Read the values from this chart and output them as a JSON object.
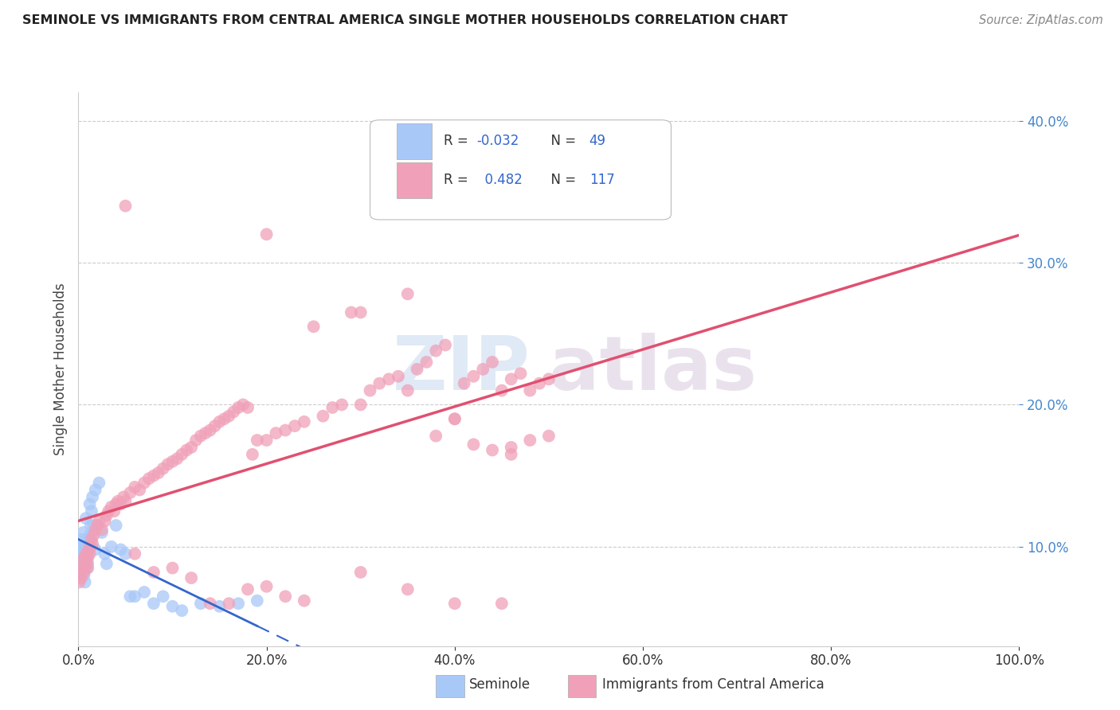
{
  "title": "SEMINOLE VS IMMIGRANTS FROM CENTRAL AMERICA SINGLE MOTHER HOUSEHOLDS CORRELATION CHART",
  "source": "Source: ZipAtlas.com",
  "ylabel": "Single Mother Households",
  "xlim": [
    0.0,
    1.0
  ],
  "ylim": [
    0.03,
    0.42
  ],
  "yticks": [
    0.1,
    0.2,
    0.3,
    0.4
  ],
  "xtick_vals": [
    0.0,
    0.2,
    0.4,
    0.6,
    0.8,
    1.0
  ],
  "legend_R1": "-0.032",
  "legend_N1": "49",
  "legend_R2": "0.482",
  "legend_N2": "117",
  "color_seminole": "#a8c8f8",
  "color_immigrants": "#f0a0b8",
  "color_line_seminole": "#3366cc",
  "color_line_immigrants": "#e05070",
  "background_color": "#ffffff",
  "watermark_zip": "ZIP",
  "watermark_atlas": "atlas",
  "seminole_x": [
    0.001,
    0.002,
    0.002,
    0.003,
    0.003,
    0.004,
    0.004,
    0.005,
    0.005,
    0.006,
    0.006,
    0.007,
    0.007,
    0.008,
    0.008,
    0.009,
    0.009,
    0.01,
    0.01,
    0.011,
    0.012,
    0.013,
    0.014,
    0.015,
    0.016,
    0.018,
    0.02,
    0.022,
    0.025,
    0.028,
    0.03,
    0.035,
    0.04,
    0.045,
    0.05,
    0.055,
    0.06,
    0.07,
    0.08,
    0.09,
    0.1,
    0.11,
    0.13,
    0.15,
    0.17,
    0.19,
    0.008,
    0.012,
    0.018
  ],
  "seminole_y": [
    0.095,
    0.1,
    0.09,
    0.105,
    0.085,
    0.098,
    0.092,
    0.11,
    0.088,
    0.095,
    0.08,
    0.1,
    0.075,
    0.09,
    0.095,
    0.085,
    0.1,
    0.095,
    0.088,
    0.105,
    0.13,
    0.115,
    0.125,
    0.135,
    0.115,
    0.14,
    0.115,
    0.145,
    0.11,
    0.095,
    0.088,
    0.1,
    0.115,
    0.098,
    0.095,
    0.065,
    0.065,
    0.068,
    0.06,
    0.065,
    0.058,
    0.055,
    0.06,
    0.058,
    0.06,
    0.062,
    0.12,
    0.108,
    0.098
  ],
  "immigrants_x": [
    0.001,
    0.002,
    0.003,
    0.004,
    0.005,
    0.006,
    0.006,
    0.007,
    0.008,
    0.009,
    0.01,
    0.01,
    0.011,
    0.012,
    0.013,
    0.014,
    0.015,
    0.016,
    0.018,
    0.02,
    0.022,
    0.025,
    0.028,
    0.03,
    0.032,
    0.035,
    0.038,
    0.04,
    0.042,
    0.045,
    0.048,
    0.05,
    0.055,
    0.06,
    0.065,
    0.07,
    0.075,
    0.08,
    0.085,
    0.09,
    0.095,
    0.1,
    0.105,
    0.11,
    0.115,
    0.12,
    0.125,
    0.13,
    0.135,
    0.14,
    0.145,
    0.15,
    0.155,
    0.16,
    0.165,
    0.17,
    0.175,
    0.18,
    0.185,
    0.19,
    0.2,
    0.21,
    0.22,
    0.23,
    0.24,
    0.25,
    0.26,
    0.27,
    0.28,
    0.29,
    0.3,
    0.31,
    0.32,
    0.33,
    0.34,
    0.35,
    0.36,
    0.37,
    0.38,
    0.39,
    0.4,
    0.41,
    0.42,
    0.43,
    0.44,
    0.45,
    0.46,
    0.47,
    0.48,
    0.49,
    0.5,
    0.38,
    0.42,
    0.46,
    0.3,
    0.35,
    0.4,
    0.06,
    0.08,
    0.1,
    0.12,
    0.14,
    0.16,
    0.18,
    0.2,
    0.22,
    0.24,
    0.44,
    0.46,
    0.48,
    0.5,
    0.3,
    0.35,
    0.05,
    0.4,
    0.45,
    0.2
  ],
  "immigrants_y": [
    0.075,
    0.08,
    0.078,
    0.085,
    0.09,
    0.082,
    0.092,
    0.085,
    0.095,
    0.088,
    0.092,
    0.085,
    0.098,
    0.095,
    0.1,
    0.105,
    0.102,
    0.108,
    0.112,
    0.115,
    0.118,
    0.112,
    0.118,
    0.122,
    0.125,
    0.128,
    0.125,
    0.13,
    0.132,
    0.13,
    0.135,
    0.132,
    0.138,
    0.142,
    0.14,
    0.145,
    0.148,
    0.15,
    0.152,
    0.155,
    0.158,
    0.16,
    0.162,
    0.165,
    0.168,
    0.17,
    0.175,
    0.178,
    0.18,
    0.182,
    0.185,
    0.188,
    0.19,
    0.192,
    0.195,
    0.198,
    0.2,
    0.198,
    0.165,
    0.175,
    0.175,
    0.18,
    0.182,
    0.185,
    0.188,
    0.255,
    0.192,
    0.198,
    0.2,
    0.265,
    0.265,
    0.21,
    0.215,
    0.218,
    0.22,
    0.278,
    0.225,
    0.23,
    0.238,
    0.242,
    0.19,
    0.215,
    0.22,
    0.225,
    0.23,
    0.21,
    0.218,
    0.222,
    0.21,
    0.215,
    0.218,
    0.178,
    0.172,
    0.165,
    0.2,
    0.21,
    0.19,
    0.095,
    0.082,
    0.085,
    0.078,
    0.06,
    0.06,
    0.07,
    0.072,
    0.065,
    0.062,
    0.168,
    0.17,
    0.175,
    0.178,
    0.082,
    0.07,
    0.34,
    0.06,
    0.06,
    0.32
  ]
}
